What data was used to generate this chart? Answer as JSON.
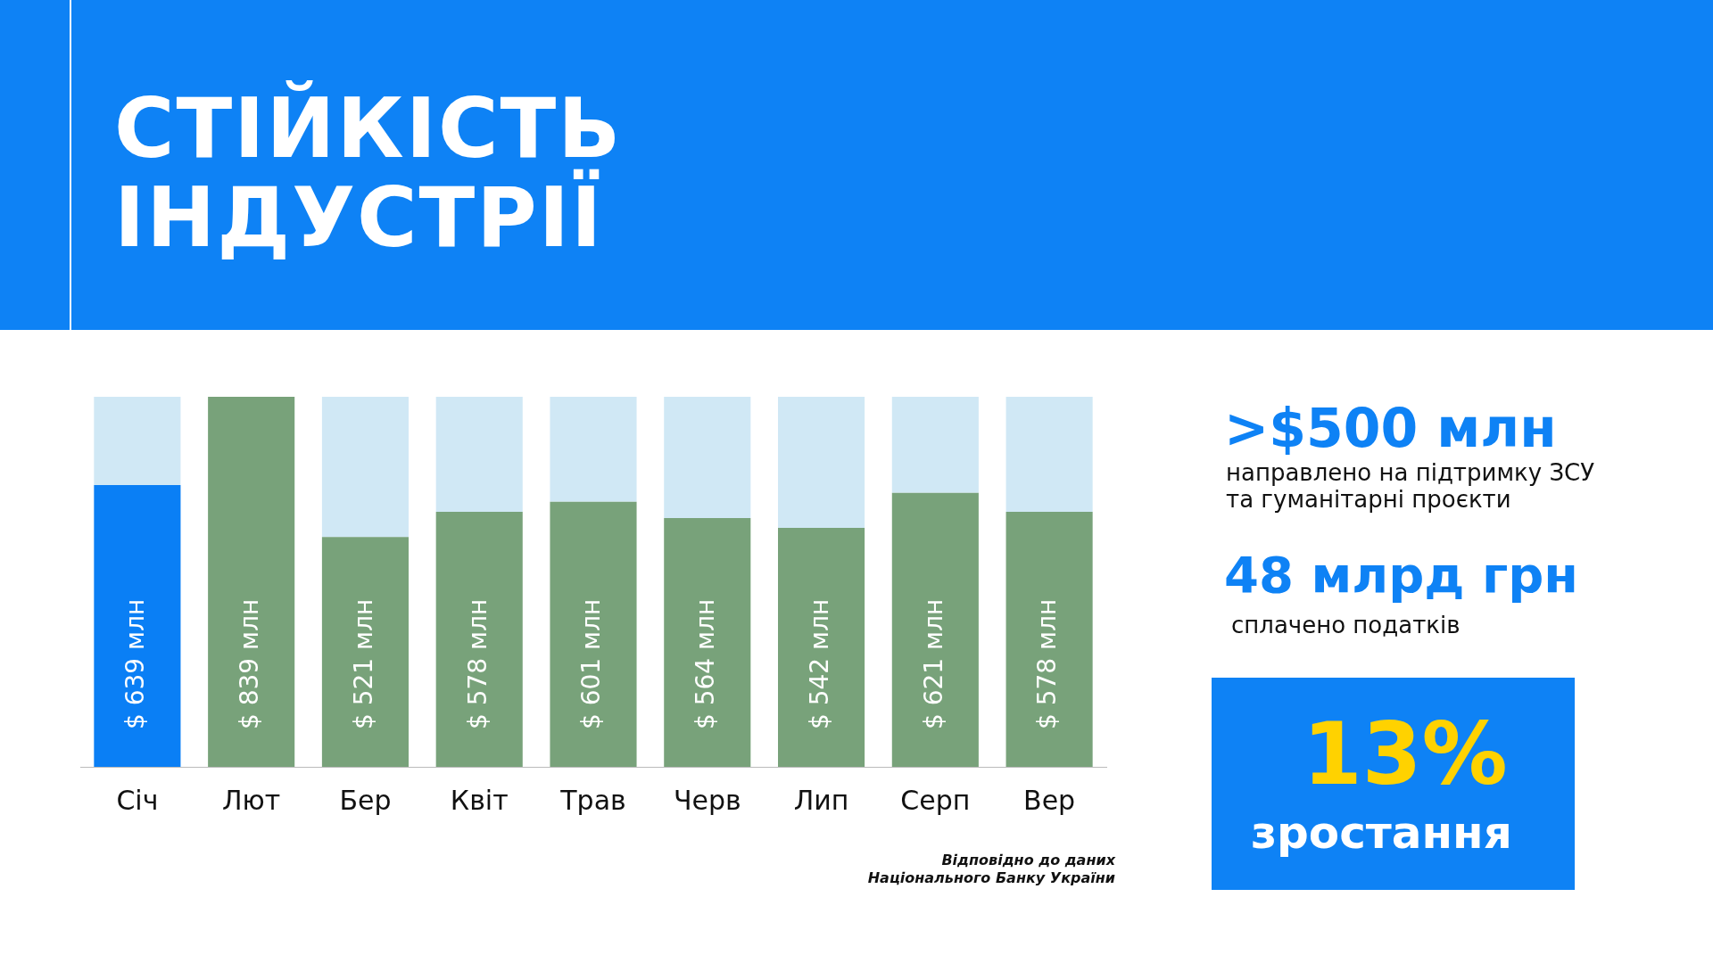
{
  "chart_data": {
    "type": "bar",
    "title": "СТІЙКІСТЬ ІНДУСТРІЇ",
    "categories": [
      "Січ",
      "Лют",
      "Бер",
      "Квіт",
      "Трав",
      "Черв",
      "Лип",
      "Серп",
      "Вер"
    ],
    "stacked": true,
    "ylim": [
      0,
      839
    ],
    "tick_labels": "x",
    "series": [
      {
        "colors": [
          "#0a7ff5",
          "#78a27a",
          "#78a27a",
          "#78a27a",
          "#78a27a",
          "#78a27a",
          "#78a27a",
          "#78a27a",
          "#78a27a"
        ],
        "values": [
          639,
          839,
          521,
          578,
          601,
          564,
          542,
          621,
          578
        ],
        "value_labels": [
          "$ 639 млн",
          "$ 839 млн",
          "$ 521 млн",
          "$ 578 млн",
          "$ 601 млн",
          "$ 564 млн",
          "$ 542 млн",
          "$ 621 млн",
          "$ 578 млн"
        ]
      },
      {
        "color": "#d0e8f5",
        "values": [
          200,
          0,
          318,
          261,
          238,
          275,
          297,
          218,
          261
        ]
      }
    ],
    "annotations": [
      ">$500 млн",
      "направлено на підтримку ЗСУ та гуманітарні проєкти",
      "48 млрд грн",
      "сплачено податків",
      "13%",
      "зростання",
      "Відповідно до даних Національного Банку України"
    ]
  }
}
